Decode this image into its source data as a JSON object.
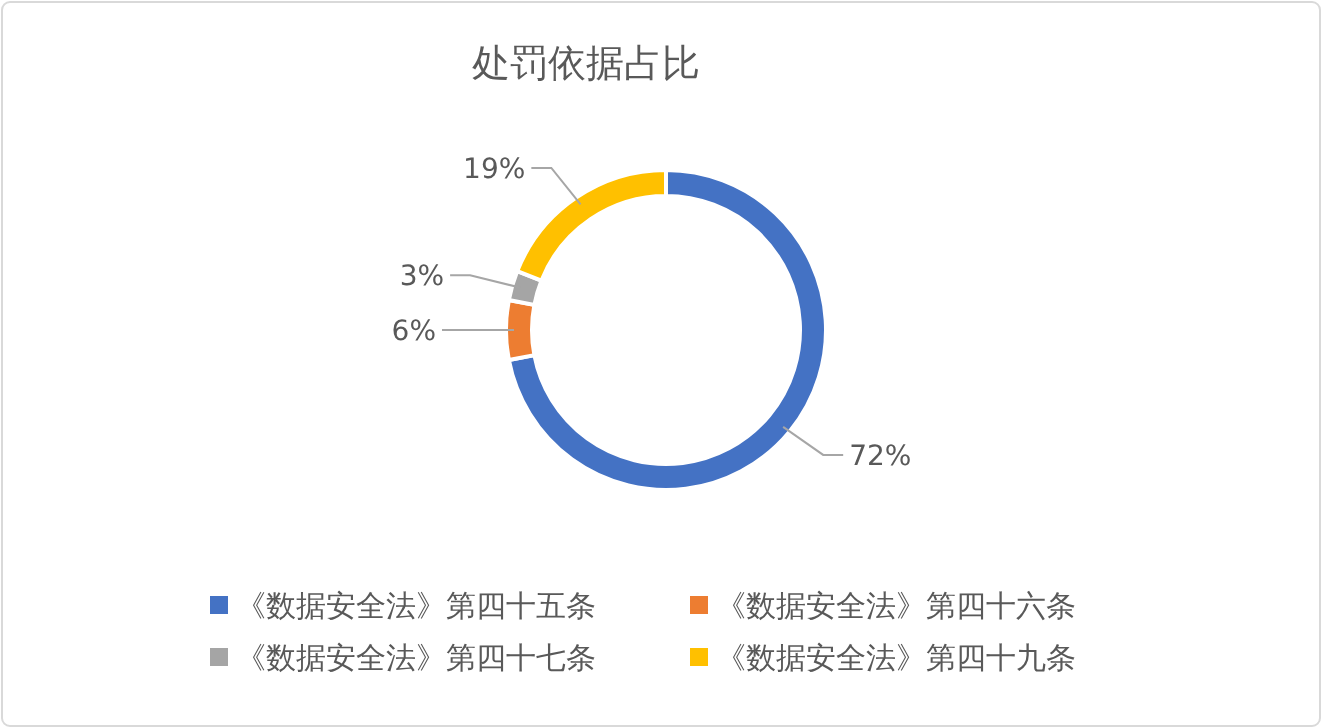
{
  "chart_data": {
    "type": "donut",
    "title": "处罚依据占比",
    "categories": [
      "《数据安全法》第四十五条",
      "《数据安全法》第四十六条",
      "《数据安全法》第四十七条",
      "《数据安全法》第四十九条"
    ],
    "values": [
      72,
      6,
      3,
      19
    ],
    "colors": [
      "#4472c4",
      "#ed7d31",
      "#a5a5a5",
      "#ffc000"
    ],
    "value_labels": [
      "72%",
      "6%",
      "3%",
      "19%"
    ],
    "legend": "bottom"
  }
}
